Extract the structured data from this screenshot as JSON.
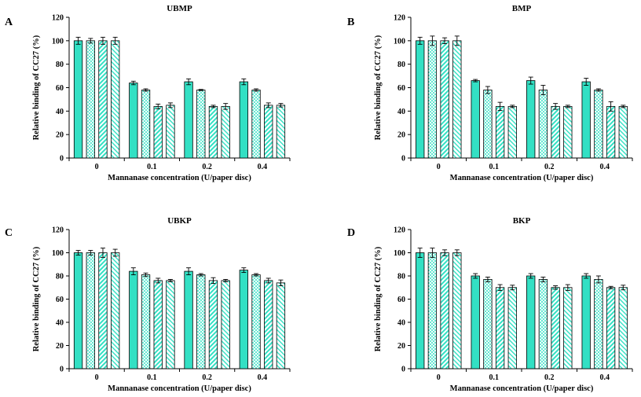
{
  "colors": {
    "bar_fill": "#33e0c4",
    "bar_stroke": "#000000",
    "hatch": "#1a8f7f"
  },
  "chart_data": [
    {
      "type": "bar",
      "panel": "A",
      "title": "UBMP",
      "xlabel": "Mannanase concentration (U/paper disc)",
      "ylabel": "Relative binding of CC27 (%)",
      "categories": [
        "0",
        "0.1",
        "0.2",
        "0.4"
      ],
      "yticks": [
        "0",
        "20",
        "40",
        "60",
        "80",
        "100",
        "120"
      ],
      "ylim": [
        0,
        120
      ],
      "series": [
        {
          "name": "solid",
          "values": [
            100,
            64,
            65,
            65
          ],
          "errors": [
            3,
            1.5,
            2.5,
            2.5
          ]
        },
        {
          "name": "cross-hatch",
          "values": [
            100,
            58,
            58,
            58
          ],
          "errors": [
            2,
            1,
            0.5,
            1
          ]
        },
        {
          "name": "diagonal-dense",
          "values": [
            100,
            44,
            44,
            45
          ],
          "errors": [
            3,
            2,
            1,
            2
          ]
        },
        {
          "name": "diagonal-light",
          "values": [
            100,
            45,
            44,
            45
          ],
          "errors": [
            3,
            2,
            2.5,
            1.5
          ]
        }
      ]
    },
    {
      "type": "bar",
      "panel": "B",
      "title": "BMP",
      "xlabel": "Mannanase concentration (U/paper disc)",
      "ylabel": "Relative binding of CC27 (%)",
      "categories": [
        "0",
        "0.1",
        "0.2",
        "0.4"
      ],
      "yticks": [
        "0",
        "20",
        "40",
        "60",
        "80",
        "100",
        "120"
      ],
      "ylim": [
        0,
        120
      ],
      "series": [
        {
          "name": "solid",
          "values": [
            100,
            66,
            66,
            65
          ],
          "errors": [
            3,
            1,
            3,
            3
          ]
        },
        {
          "name": "cross-hatch",
          "values": [
            100,
            58,
            58,
            58
          ],
          "errors": [
            4,
            3,
            4,
            1
          ]
        },
        {
          "name": "diagonal-dense",
          "values": [
            100,
            44,
            44,
            44
          ],
          "errors": [
            2.5,
            3.5,
            2.5,
            4
          ]
        },
        {
          "name": "diagonal-light",
          "values": [
            100,
            44,
            44,
            44
          ],
          "errors": [
            4,
            1,
            1,
            1
          ]
        }
      ]
    },
    {
      "type": "bar",
      "panel": "C",
      "title": "UBKP",
      "xlabel": "Mannanase concentration (U/paper disc)",
      "ylabel": "Relative binding of CC27 (%)",
      "categories": [
        "0",
        "0.1",
        "0.2",
        "0.4"
      ],
      "yticks": [
        "0",
        "20",
        "40",
        "60",
        "80",
        "100",
        "120"
      ],
      "ylim": [
        0,
        120
      ],
      "series": [
        {
          "name": "solid",
          "values": [
            100,
            84,
            84,
            85
          ],
          "errors": [
            2,
            3,
            3,
            2
          ]
        },
        {
          "name": "cross-hatch",
          "values": [
            100,
            81,
            81,
            81
          ],
          "errors": [
            2,
            1.5,
            1,
            1
          ]
        },
        {
          "name": "diagonal-dense",
          "values": [
            100,
            76,
            76,
            76
          ],
          "errors": [
            4,
            2,
            2.5,
            2
          ]
        },
        {
          "name": "diagonal-light",
          "values": [
            100,
            76,
            76,
            74
          ],
          "errors": [
            3,
            1,
            1,
            2.5
          ]
        }
      ]
    },
    {
      "type": "bar",
      "panel": "D",
      "title": "BKP",
      "xlabel": "Mannanase concentration (U/paper disc)",
      "ylabel": "Relative binding of CC27 (%)",
      "categories": [
        "0",
        "0.1",
        "0.2",
        "0.4"
      ],
      "yticks": [
        "0",
        "20",
        "40",
        "60",
        "80",
        "100",
        "120"
      ],
      "ylim": [
        0,
        120
      ],
      "series": [
        {
          "name": "solid",
          "values": [
            100,
            80,
            80,
            80
          ],
          "errors": [
            4,
            2,
            2,
            2
          ]
        },
        {
          "name": "cross-hatch",
          "values": [
            100,
            77,
            77,
            77
          ],
          "errors": [
            4,
            2,
            2,
            3
          ]
        },
        {
          "name": "diagonal-dense",
          "values": [
            100,
            70,
            70,
            70
          ],
          "errors": [
            2.5,
            2.5,
            1.5,
            1
          ]
        },
        {
          "name": "diagonal-light",
          "values": [
            100,
            70,
            70,
            70
          ],
          "errors": [
            2.5,
            2,
            2.5,
            2
          ]
        }
      ]
    }
  ]
}
